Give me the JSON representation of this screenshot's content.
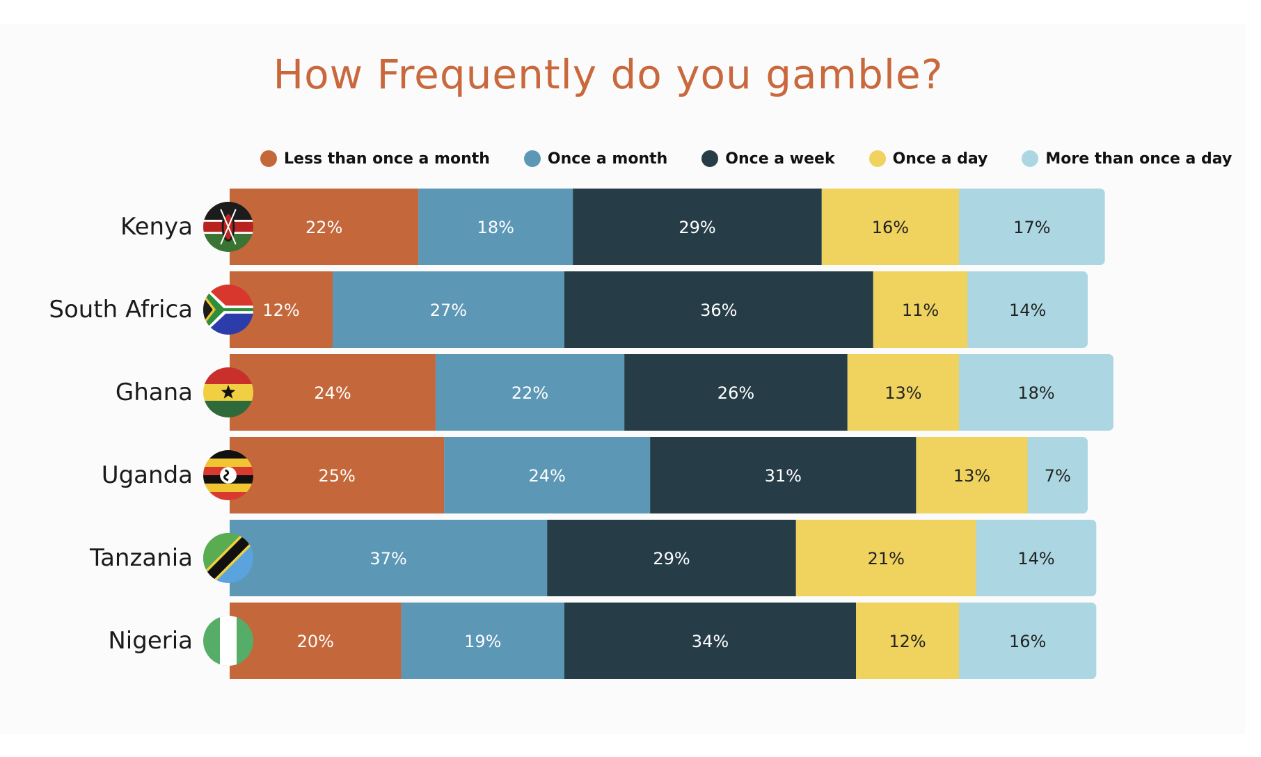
{
  "title": "How Frequently do you gamble?",
  "colors": {
    "title": "#c9683c",
    "less_than_once_a_month": "#c4673b",
    "once_a_month": "#5c97b6",
    "once_a_week": "#263d48",
    "once_a_day": "#f0d25e",
    "more_than_once_a_day": "#acd7e2"
  },
  "chart_data": {
    "type": "bar",
    "orientation": "horizontal",
    "stacked": true,
    "title": "How Frequently do you gamble?",
    "legend_position": "top",
    "categories": [
      "Kenya",
      "South Africa",
      "Ghana",
      "Uganda",
      "Tanzania",
      "Nigeria"
    ],
    "flags": [
      "kenya-flag-icon",
      "south-africa-flag-icon",
      "ghana-flag-icon",
      "uganda-flag-icon",
      "tanzania-flag-icon",
      "nigeria-flag-icon"
    ],
    "series": [
      {
        "name": "Less than once a month",
        "color": "#c4673b",
        "label_color": "#ffffff",
        "values": [
          22,
          12,
          24,
          25,
          0,
          20
        ]
      },
      {
        "name": "Once a month",
        "color": "#5c97b6",
        "label_color": "#ffffff",
        "values": [
          18,
          27,
          22,
          24,
          37,
          19
        ]
      },
      {
        "name": "Once a week",
        "color": "#263d48",
        "label_color": "#ffffff",
        "values": [
          29,
          36,
          26,
          31,
          29,
          34
        ]
      },
      {
        "name": "Once a day",
        "color": "#f0d25e",
        "label_color": "#222222",
        "values": [
          16,
          11,
          13,
          13,
          21,
          12
        ]
      },
      {
        "name": "More than once a day",
        "color": "#acd7e2",
        "label_color": "#222222",
        "values": [
          17,
          14,
          18,
          7,
          14,
          16
        ]
      }
    ],
    "labels": [
      [
        "22%",
        "18%",
        "29%",
        "16%",
        "17%"
      ],
      [
        "12%",
        "27%",
        "36%",
        "11%",
        "14%"
      ],
      [
        "24%",
        "22%",
        "26%",
        "13%",
        "18%"
      ],
      [
        "25%",
        "24%",
        "31%",
        "13%",
        "7%"
      ],
      [
        "",
        "37%",
        "29%",
        "21%",
        "14%"
      ],
      [
        "20%",
        "19%",
        "34%",
        "12%",
        "16%"
      ]
    ],
    "value_unit": "%"
  }
}
